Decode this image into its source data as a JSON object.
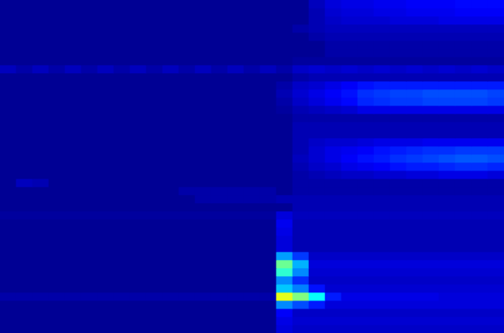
{
  "chart_data": {
    "type": "heatmap",
    "tick_labels": false,
    "grid": false,
    "zlim": [
      0,
      1
    ],
    "cells": [
      [
        0.02,
        0.02,
        0.02,
        0.02,
        0.02,
        0.02,
        0.02,
        0.02,
        0.02,
        0.02,
        0.02,
        0.02,
        0.02,
        0.02,
        0.02,
        0.02,
        0.02,
        0.02,
        0.02,
        0.06,
        0.09,
        0.1,
        0.1,
        0.11,
        0.11,
        0.12,
        0.12,
        0.12,
        0.13,
        0.13,
        0.13
      ],
      [
        0.02,
        0.02,
        0.02,
        0.02,
        0.02,
        0.02,
        0.02,
        0.02,
        0.02,
        0.02,
        0.02,
        0.02,
        0.02,
        0.02,
        0.02,
        0.02,
        0.02,
        0.02,
        0.02,
        0.05,
        0.08,
        0.09,
        0.09,
        0.1,
        0.1,
        0.11,
        0.11,
        0.11,
        0.12,
        0.12,
        0.12
      ],
      [
        0.02,
        0.02,
        0.02,
        0.02,
        0.02,
        0.02,
        0.02,
        0.02,
        0.02,
        0.02,
        0.02,
        0.02,
        0.02,
        0.02,
        0.02,
        0.02,
        0.02,
        0.02,
        0.02,
        0.05,
        0.07,
        0.08,
        0.08,
        0.08,
        0.09,
        0.09,
        0.09,
        0.1,
        0.1,
        0.1,
        0.1
      ],
      [
        0.02,
        0.02,
        0.02,
        0.02,
        0.02,
        0.02,
        0.02,
        0.02,
        0.02,
        0.02,
        0.02,
        0.02,
        0.02,
        0.02,
        0.02,
        0.02,
        0.02,
        0.02,
        0.04,
        0.05,
        0.06,
        0.06,
        0.06,
        0.06,
        0.06,
        0.06,
        0.06,
        0.06,
        0.06,
        0.06,
        0.06
      ],
      [
        0.02,
        0.02,
        0.02,
        0.02,
        0.02,
        0.02,
        0.02,
        0.02,
        0.02,
        0.02,
        0.02,
        0.02,
        0.02,
        0.02,
        0.02,
        0.02,
        0.02,
        0.02,
        0.02,
        0.04,
        0.05,
        0.05,
        0.05,
        0.05,
        0.05,
        0.05,
        0.05,
        0.05,
        0.05,
        0.05,
        0.05
      ],
      [
        0.02,
        0.02,
        0.02,
        0.02,
        0.02,
        0.02,
        0.02,
        0.02,
        0.02,
        0.02,
        0.02,
        0.02,
        0.02,
        0.02,
        0.02,
        0.02,
        0.02,
        0.02,
        0.02,
        0.02,
        0.04,
        0.04,
        0.04,
        0.04,
        0.04,
        0.04,
        0.04,
        0.04,
        0.04,
        0.04,
        0.04
      ],
      [
        0.02,
        0.02,
        0.02,
        0.02,
        0.02,
        0.02,
        0.02,
        0.02,
        0.02,
        0.02,
        0.02,
        0.02,
        0.02,
        0.02,
        0.02,
        0.02,
        0.02,
        0.02,
        0.02,
        0.02,
        0.04,
        0.04,
        0.04,
        0.04,
        0.04,
        0.04,
        0.04,
        0.04,
        0.04,
        0.04,
        0.04
      ],
      [
        0.02,
        0.02,
        0.02,
        0.02,
        0.02,
        0.02,
        0.02,
        0.02,
        0.02,
        0.02,
        0.02,
        0.02,
        0.02,
        0.02,
        0.02,
        0.02,
        0.02,
        0.02,
        0.03,
        0.03,
        0.03,
        0.03,
        0.03,
        0.03,
        0.03,
        0.03,
        0.03,
        0.03,
        0.03,
        0.03,
        0.03
      ],
      [
        0.06,
        0.04,
        0.06,
        0.04,
        0.06,
        0.04,
        0.06,
        0.04,
        0.06,
        0.04,
        0.06,
        0.04,
        0.06,
        0.04,
        0.06,
        0.04,
        0.06,
        0.04,
        0.07,
        0.08,
        0.07,
        0.08,
        0.07,
        0.08,
        0.07,
        0.08,
        0.07,
        0.08,
        0.07,
        0.08,
        0.07
      ],
      [
        0.02,
        0.02,
        0.02,
        0.02,
        0.02,
        0.02,
        0.02,
        0.02,
        0.02,
        0.02,
        0.02,
        0.02,
        0.02,
        0.02,
        0.02,
        0.02,
        0.02,
        0.02,
        0.04,
        0.05,
        0.05,
        0.05,
        0.05,
        0.05,
        0.05,
        0.05,
        0.05,
        0.05,
        0.05,
        0.05,
        0.05
      ],
      [
        0.02,
        0.02,
        0.02,
        0.02,
        0.02,
        0.02,
        0.02,
        0.02,
        0.02,
        0.02,
        0.02,
        0.02,
        0.02,
        0.02,
        0.02,
        0.02,
        0.02,
        0.04,
        0.07,
        0.08,
        0.1,
        0.12,
        0.14,
        0.15,
        0.15,
        0.15,
        0.15,
        0.15,
        0.15,
        0.15,
        0.15
      ],
      [
        0.02,
        0.02,
        0.02,
        0.02,
        0.02,
        0.02,
        0.02,
        0.02,
        0.02,
        0.02,
        0.02,
        0.02,
        0.02,
        0.02,
        0.02,
        0.02,
        0.02,
        0.05,
        0.08,
        0.1,
        0.12,
        0.14,
        0.17,
        0.18,
        0.19,
        0.19,
        0.2,
        0.2,
        0.2,
        0.2,
        0.19
      ],
      [
        0.02,
        0.02,
        0.02,
        0.02,
        0.02,
        0.02,
        0.02,
        0.02,
        0.02,
        0.02,
        0.02,
        0.02,
        0.02,
        0.02,
        0.02,
        0.02,
        0.02,
        0.04,
        0.07,
        0.09,
        0.11,
        0.13,
        0.16,
        0.17,
        0.18,
        0.18,
        0.19,
        0.19,
        0.19,
        0.19,
        0.18
      ],
      [
        0.02,
        0.02,
        0.02,
        0.02,
        0.02,
        0.02,
        0.02,
        0.02,
        0.02,
        0.02,
        0.02,
        0.02,
        0.02,
        0.02,
        0.02,
        0.02,
        0.02,
        0.03,
        0.05,
        0.06,
        0.07,
        0.08,
        0.1,
        0.1,
        0.1,
        0.1,
        0.1,
        0.1,
        0.1,
        0.1,
        0.1
      ],
      [
        0.02,
        0.02,
        0.02,
        0.02,
        0.02,
        0.02,
        0.02,
        0.02,
        0.02,
        0.02,
        0.02,
        0.02,
        0.02,
        0.02,
        0.02,
        0.02,
        0.02,
        0.02,
        0.04,
        0.04,
        0.04,
        0.04,
        0.04,
        0.04,
        0.04,
        0.04,
        0.04,
        0.04,
        0.04,
        0.04,
        0.04
      ],
      [
        0.02,
        0.02,
        0.02,
        0.02,
        0.02,
        0.02,
        0.02,
        0.02,
        0.02,
        0.02,
        0.02,
        0.02,
        0.02,
        0.02,
        0.02,
        0.02,
        0.02,
        0.02,
        0.05,
        0.05,
        0.05,
        0.05,
        0.05,
        0.05,
        0.05,
        0.05,
        0.05,
        0.05,
        0.05,
        0.05,
        0.05
      ],
      [
        0.02,
        0.02,
        0.02,
        0.02,
        0.02,
        0.02,
        0.02,
        0.02,
        0.02,
        0.02,
        0.02,
        0.02,
        0.02,
        0.02,
        0.02,
        0.02,
        0.02,
        0.02,
        0.05,
        0.05,
        0.05,
        0.05,
        0.05,
        0.05,
        0.05,
        0.05,
        0.05,
        0.05,
        0.05,
        0.05,
        0.05
      ],
      [
        0.02,
        0.02,
        0.02,
        0.02,
        0.02,
        0.02,
        0.02,
        0.02,
        0.02,
        0.02,
        0.02,
        0.02,
        0.02,
        0.02,
        0.02,
        0.02,
        0.02,
        0.02,
        0.05,
        0.07,
        0.08,
        0.08,
        0.09,
        0.1,
        0.1,
        0.1,
        0.11,
        0.11,
        0.11,
        0.11,
        0.11
      ],
      [
        0.02,
        0.02,
        0.02,
        0.02,
        0.02,
        0.02,
        0.02,
        0.02,
        0.02,
        0.02,
        0.02,
        0.02,
        0.02,
        0.02,
        0.02,
        0.02,
        0.02,
        0.02,
        0.05,
        0.08,
        0.1,
        0.11,
        0.12,
        0.14,
        0.15,
        0.16,
        0.17,
        0.17,
        0.18,
        0.18,
        0.18
      ],
      [
        0.02,
        0.02,
        0.02,
        0.02,
        0.02,
        0.02,
        0.02,
        0.02,
        0.02,
        0.02,
        0.02,
        0.02,
        0.02,
        0.02,
        0.02,
        0.02,
        0.02,
        0.02,
        0.06,
        0.08,
        0.1,
        0.12,
        0.14,
        0.15,
        0.17,
        0.18,
        0.19,
        0.2,
        0.21,
        0.21,
        0.2
      ],
      [
        0.02,
        0.02,
        0.02,
        0.02,
        0.02,
        0.02,
        0.02,
        0.02,
        0.02,
        0.02,
        0.02,
        0.02,
        0.02,
        0.02,
        0.02,
        0.02,
        0.02,
        0.02,
        0.05,
        0.07,
        0.08,
        0.1,
        0.11,
        0.12,
        0.14,
        0.15,
        0.15,
        0.16,
        0.17,
        0.17,
        0.16
      ],
      [
        0.02,
        0.02,
        0.02,
        0.02,
        0.02,
        0.02,
        0.02,
        0.02,
        0.02,
        0.02,
        0.02,
        0.02,
        0.02,
        0.02,
        0.02,
        0.02,
        0.02,
        0.02,
        0.04,
        0.05,
        0.06,
        0.07,
        0.07,
        0.08,
        0.08,
        0.09,
        0.09,
        0.1,
        0.1,
        0.1,
        0.09
      ],
      [
        0.02,
        0.06,
        0.05,
        0.02,
        0.02,
        0.02,
        0.02,
        0.02,
        0.02,
        0.02,
        0.02,
        0.02,
        0.02,
        0.02,
        0.02,
        0.02,
        0.02,
        0.02,
        0.04,
        0.04,
        0.04,
        0.04,
        0.04,
        0.04,
        0.04,
        0.04,
        0.04,
        0.04,
        0.04,
        0.04,
        0.04
      ],
      [
        0.02,
        0.02,
        0.02,
        0.02,
        0.02,
        0.02,
        0.02,
        0.02,
        0.02,
        0.02,
        0.02,
        0.04,
        0.04,
        0.04,
        0.04,
        0.04,
        0.04,
        0.02,
        0.04,
        0.04,
        0.04,
        0.04,
        0.04,
        0.04,
        0.04,
        0.04,
        0.04,
        0.04,
        0.04,
        0.04,
        0.04
      ],
      [
        0.02,
        0.02,
        0.02,
        0.02,
        0.02,
        0.02,
        0.02,
        0.02,
        0.02,
        0.02,
        0.02,
        0.02,
        0.04,
        0.04,
        0.04,
        0.04,
        0.04,
        0.05,
        0.05,
        0.05,
        0.05,
        0.05,
        0.05,
        0.05,
        0.05,
        0.05,
        0.05,
        0.05,
        0.05,
        0.05,
        0.05
      ],
      [
        0.02,
        0.02,
        0.02,
        0.02,
        0.02,
        0.02,
        0.02,
        0.02,
        0.02,
        0.02,
        0.02,
        0.02,
        0.02,
        0.02,
        0.02,
        0.02,
        0.02,
        0.02,
        0.05,
        0.05,
        0.05,
        0.05,
        0.05,
        0.05,
        0.05,
        0.05,
        0.05,
        0.05,
        0.05,
        0.05,
        0.05
      ],
      [
        0.03,
        0.03,
        0.03,
        0.03,
        0.03,
        0.03,
        0.03,
        0.03,
        0.03,
        0.03,
        0.03,
        0.03,
        0.03,
        0.03,
        0.03,
        0.03,
        0.03,
        0.09,
        0.06,
        0.06,
        0.06,
        0.06,
        0.06,
        0.06,
        0.06,
        0.06,
        0.06,
        0.06,
        0.06,
        0.06,
        0.06
      ],
      [
        0.02,
        0.02,
        0.02,
        0.02,
        0.02,
        0.02,
        0.02,
        0.02,
        0.02,
        0.02,
        0.02,
        0.02,
        0.02,
        0.02,
        0.02,
        0.02,
        0.02,
        0.11,
        0.05,
        0.05,
        0.05,
        0.05,
        0.05,
        0.05,
        0.05,
        0.05,
        0.05,
        0.05,
        0.05,
        0.05,
        0.05
      ],
      [
        0.02,
        0.02,
        0.02,
        0.02,
        0.02,
        0.02,
        0.02,
        0.02,
        0.02,
        0.02,
        0.02,
        0.02,
        0.02,
        0.02,
        0.02,
        0.02,
        0.02,
        0.1,
        0.05,
        0.05,
        0.05,
        0.05,
        0.05,
        0.05,
        0.05,
        0.05,
        0.05,
        0.05,
        0.05,
        0.05,
        0.05
      ],
      [
        0.02,
        0.02,
        0.02,
        0.02,
        0.02,
        0.02,
        0.02,
        0.02,
        0.02,
        0.02,
        0.02,
        0.02,
        0.02,
        0.02,
        0.02,
        0.02,
        0.02,
        0.09,
        0.05,
        0.05,
        0.05,
        0.05,
        0.05,
        0.05,
        0.05,
        0.05,
        0.05,
        0.05,
        0.05,
        0.05,
        0.05
      ],
      [
        0.02,
        0.02,
        0.02,
        0.02,
        0.02,
        0.02,
        0.02,
        0.02,
        0.02,
        0.02,
        0.02,
        0.02,
        0.02,
        0.02,
        0.02,
        0.02,
        0.02,
        0.09,
        0.05,
        0.05,
        0.05,
        0.05,
        0.05,
        0.05,
        0.05,
        0.05,
        0.05,
        0.05,
        0.05,
        0.05,
        0.05
      ],
      [
        0.02,
        0.02,
        0.02,
        0.02,
        0.02,
        0.02,
        0.02,
        0.02,
        0.02,
        0.02,
        0.02,
        0.02,
        0.02,
        0.02,
        0.02,
        0.02,
        0.02,
        0.28,
        0.18,
        0.07,
        0.07,
        0.07,
        0.07,
        0.07,
        0.07,
        0.07,
        0.07,
        0.07,
        0.07,
        0.07,
        0.07
      ],
      [
        0.02,
        0.02,
        0.02,
        0.02,
        0.02,
        0.02,
        0.02,
        0.02,
        0.02,
        0.02,
        0.02,
        0.02,
        0.02,
        0.02,
        0.02,
        0.02,
        0.02,
        0.48,
        0.3,
        0.09,
        0.09,
        0.09,
        0.09,
        0.09,
        0.09,
        0.09,
        0.09,
        0.09,
        0.09,
        0.09,
        0.09
      ],
      [
        0.02,
        0.02,
        0.02,
        0.02,
        0.02,
        0.02,
        0.02,
        0.02,
        0.02,
        0.02,
        0.02,
        0.02,
        0.02,
        0.02,
        0.02,
        0.02,
        0.02,
        0.42,
        0.26,
        0.08,
        0.08,
        0.08,
        0.08,
        0.08,
        0.08,
        0.08,
        0.08,
        0.08,
        0.08,
        0.08,
        0.08
      ],
      [
        0.02,
        0.02,
        0.02,
        0.02,
        0.02,
        0.02,
        0.02,
        0.02,
        0.02,
        0.02,
        0.02,
        0.02,
        0.02,
        0.02,
        0.02,
        0.02,
        0.02,
        0.26,
        0.17,
        0.07,
        0.07,
        0.07,
        0.07,
        0.07,
        0.07,
        0.07,
        0.07,
        0.07,
        0.07,
        0.07,
        0.07
      ],
      [
        0.02,
        0.02,
        0.02,
        0.02,
        0.02,
        0.02,
        0.02,
        0.02,
        0.02,
        0.02,
        0.02,
        0.02,
        0.02,
        0.02,
        0.02,
        0.02,
        0.02,
        0.32,
        0.25,
        0.14,
        0.08,
        0.08,
        0.08,
        0.08,
        0.08,
        0.08,
        0.08,
        0.08,
        0.08,
        0.08,
        0.08
      ],
      [
        0.04,
        0.04,
        0.04,
        0.04,
        0.04,
        0.04,
        0.04,
        0.04,
        0.04,
        0.04,
        0.04,
        0.04,
        0.04,
        0.04,
        0.04,
        0.04,
        0.04,
        0.6,
        0.5,
        0.38,
        0.15,
        0.1,
        0.1,
        0.1,
        0.1,
        0.1,
        0.1,
        0.09,
        0.09,
        0.09,
        0.09
      ],
      [
        0.02,
        0.02,
        0.02,
        0.02,
        0.02,
        0.02,
        0.02,
        0.02,
        0.02,
        0.02,
        0.02,
        0.02,
        0.02,
        0.02,
        0.02,
        0.02,
        0.02,
        0.26,
        0.2,
        0.15,
        0.09,
        0.09,
        0.09,
        0.09,
        0.09,
        0.09,
        0.09,
        0.09,
        0.09,
        0.09,
        0.09
      ],
      [
        0.02,
        0.02,
        0.02,
        0.02,
        0.02,
        0.02,
        0.02,
        0.02,
        0.02,
        0.02,
        0.02,
        0.02,
        0.02,
        0.02,
        0.02,
        0.02,
        0.02,
        0.12,
        0.07,
        0.07,
        0.07,
        0.07,
        0.07,
        0.07,
        0.07,
        0.07,
        0.07,
        0.07,
        0.07,
        0.07,
        0.07
      ],
      [
        0.02,
        0.02,
        0.02,
        0.02,
        0.02,
        0.02,
        0.02,
        0.02,
        0.02,
        0.02,
        0.02,
        0.02,
        0.02,
        0.02,
        0.02,
        0.02,
        0.02,
        0.1,
        0.08,
        0.08,
        0.08,
        0.08,
        0.08,
        0.08,
        0.08,
        0.08,
        0.08,
        0.08,
        0.08,
        0.08,
        0.08
      ],
      [
        0.02,
        0.02,
        0.02,
        0.02,
        0.02,
        0.02,
        0.02,
        0.02,
        0.02,
        0.02,
        0.02,
        0.02,
        0.02,
        0.02,
        0.02,
        0.02,
        0.02,
        0.09,
        0.07,
        0.07,
        0.07,
        0.07,
        0.07,
        0.07,
        0.07,
        0.07,
        0.07,
        0.07,
        0.07,
        0.07,
        0.07
      ]
    ]
  }
}
